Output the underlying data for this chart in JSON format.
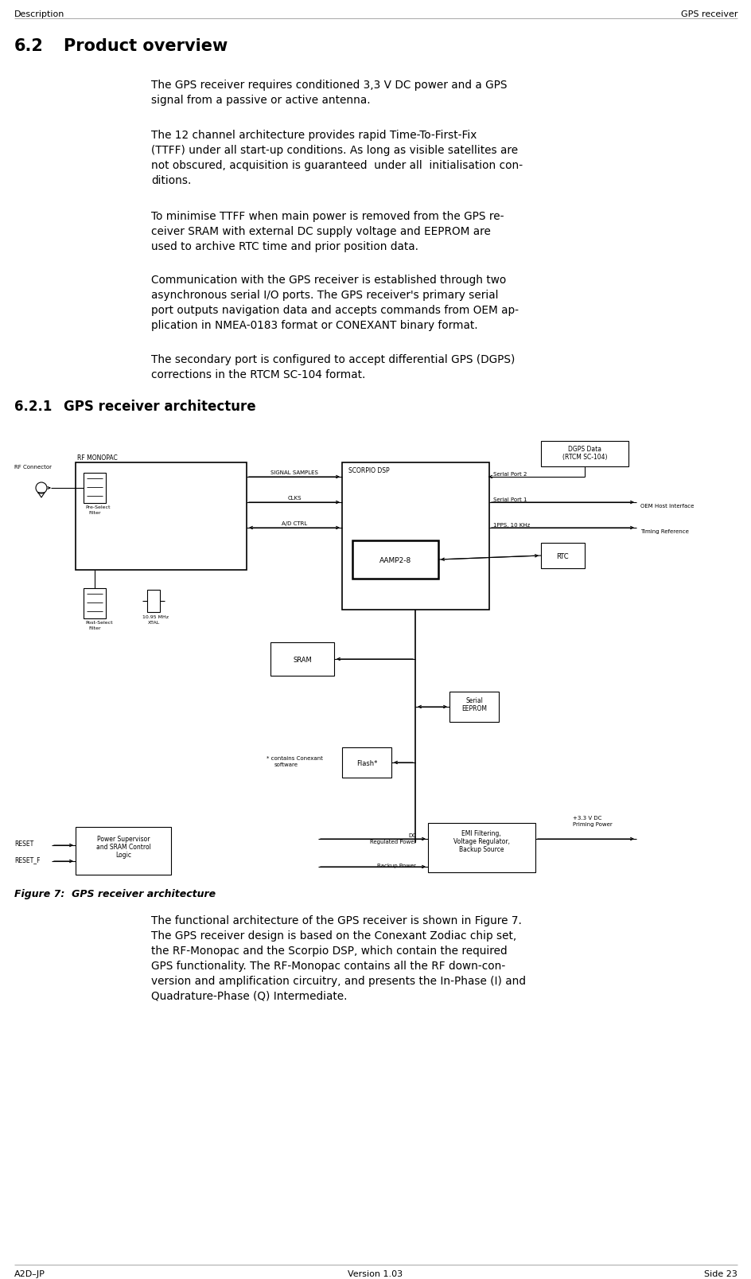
{
  "header_left": "Description",
  "header_right": "GPS receiver",
  "footer_left": "A2D–JP",
  "footer_center": "Version 1.03",
  "footer_right": "Side 23",
  "section_title": "6.2    Product overview",
  "subsection_title": "6.2.1   GPS receiver architecture",
  "figure_caption": "Figure 7:  GPS receiver architecture",
  "bg_color": "#ffffff",
  "text_color": "#000000"
}
